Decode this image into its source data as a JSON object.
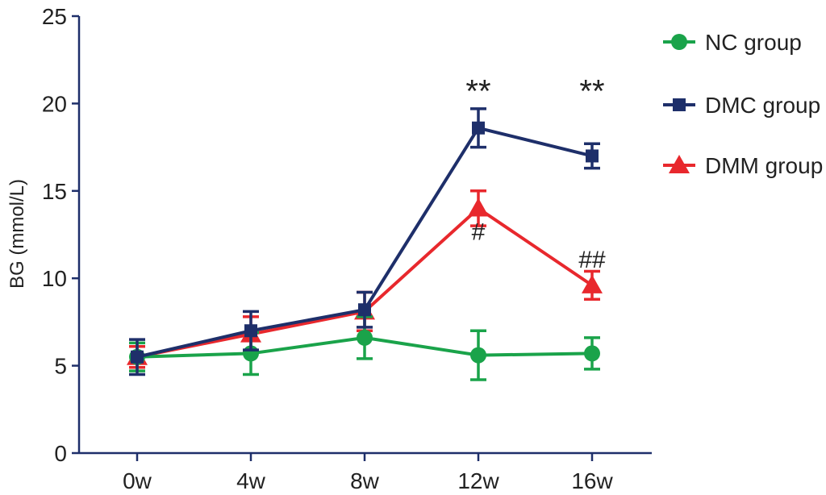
{
  "chart_data": {
    "type": "line",
    "ylabel": "BG (mmol/L)",
    "ylim": [
      0,
      25
    ],
    "yticks": [
      0,
      5,
      10,
      15,
      20,
      25
    ],
    "categories": [
      "0w",
      "4w",
      "8w",
      "12w",
      "16w"
    ],
    "legend_position": "top-right",
    "grid": false,
    "series": [
      {
        "name": "NC group",
        "color": "#1aa34a",
        "marker": "circle",
        "values": [
          5.5,
          5.7,
          6.6,
          5.6,
          5.7
        ],
        "errors": [
          0.8,
          1.2,
          1.2,
          1.4,
          0.9
        ]
      },
      {
        "name": "DMC group",
        "color": "#1e2f6a",
        "marker": "square",
        "values": [
          5.5,
          7.0,
          8.2,
          18.6,
          17.0
        ],
        "errors": [
          1.0,
          1.1,
          1.0,
          1.1,
          0.7
        ]
      },
      {
        "name": "DMM group",
        "color": "#e8282d",
        "marker": "triangle",
        "values": [
          5.5,
          6.8,
          8.1,
          14.0,
          9.6
        ],
        "errors": [
          0.6,
          1.0,
          1.1,
          1.0,
          0.8
        ]
      }
    ],
    "annotations": [
      {
        "category": "12w",
        "y": 21.0,
        "text": "**"
      },
      {
        "category": "16w",
        "y": 21.0,
        "text": "**"
      },
      {
        "category": "12w",
        "y": 12.2,
        "text": "#"
      },
      {
        "category": "16w",
        "y": 10.6,
        "text": "##"
      }
    ]
  }
}
